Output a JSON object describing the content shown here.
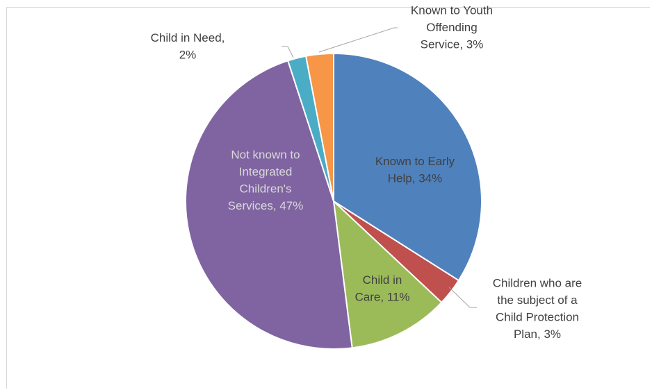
{
  "chart_data": {
    "type": "pie",
    "slices": [
      {
        "label": "Known to Early Help",
        "value": 34,
        "display": [
          "Known to Early",
          "Help, 34%"
        ],
        "color": "#4f81bd",
        "label_color": "#404040",
        "position": "inside"
      },
      {
        "label": "Children who are the subject of a Child Protection Plan",
        "value": 3,
        "display": [
          "Children who are",
          "the subject of a",
          "Child Protection",
          "Plan, 3%"
        ],
        "color": "#c0504d",
        "label_color": "#404040",
        "position": "outside"
      },
      {
        "label": "Child in Care",
        "value": 11,
        "display": [
          "Child in",
          "Care, 11%"
        ],
        "color": "#9bbb59",
        "label_color": "#404040",
        "position": "inside"
      },
      {
        "label": "Not known to Integrated Children's Services",
        "value": 47,
        "display": [
          "Not known to",
          "Integrated",
          "Children's",
          "Services, 47%"
        ],
        "color": "#8064a2",
        "label_color": "#d9d9d9",
        "position": "inside"
      },
      {
        "label": "Child in Need",
        "value": 2,
        "display": [
          "Child in Need,",
          "2%"
        ],
        "color": "#4bacc6",
        "label_color": "#404040",
        "position": "outside"
      },
      {
        "label": "Known to Youth Offending Service",
        "value": 3,
        "display": [
          "Known to Youth",
          "Offending",
          "Service, 3%"
        ],
        "color": "#f79646",
        "label_color": "#404040",
        "position": "outside"
      }
    ],
    "legend": "none",
    "start_angle": "12 o'clock, clockwise",
    "data_labels": "category name and percentage"
  }
}
